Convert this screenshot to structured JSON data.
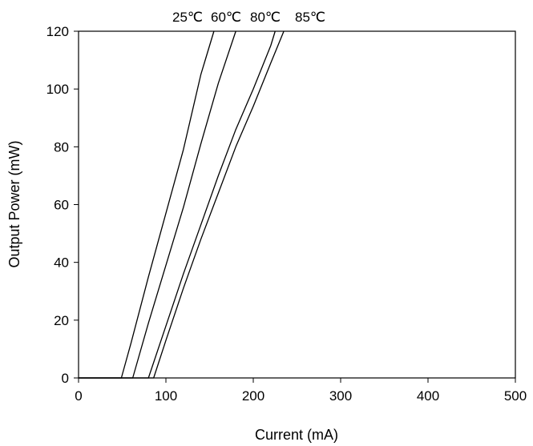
{
  "chart_data": {
    "type": "line",
    "title": "",
    "xlabel": "Current (mA)",
    "ylabel": "Output Power (mW)",
    "xlim": [
      0,
      500
    ],
    "ylim": [
      0,
      120
    ],
    "xticks": [
      0,
      100,
      200,
      300,
      400,
      500
    ],
    "yticks": [
      0,
      20,
      40,
      60,
      80,
      100,
      120
    ],
    "grid": false,
    "legend": "none",
    "line_color": "#000000",
    "top_labels": [
      "25℃",
      "60℃",
      "80℃",
      "85℃"
    ],
    "series": [
      {
        "name": "25℃",
        "x": [
          0,
          49,
          60,
          80,
          100,
          120,
          140,
          155
        ],
        "y": [
          0,
          0,
          12,
          35,
          57,
          79,
          105,
          120
        ]
      },
      {
        "name": "60℃",
        "x": [
          0,
          62,
          80,
          100,
          120,
          140,
          160,
          180
        ],
        "y": [
          0,
          0,
          19,
          39,
          59,
          81,
          102,
          120
        ]
      },
      {
        "name": "80℃",
        "x": [
          0,
          80,
          100,
          120,
          140,
          160,
          180,
          200,
          220,
          225
        ],
        "y": [
          0,
          0,
          18,
          36,
          53,
          70,
          86,
          100,
          115,
          120
        ]
      },
      {
        "name": "85℃",
        "x": [
          0,
          86,
          100,
          120,
          140,
          160,
          180,
          200,
          220,
          235
        ],
        "y": [
          0,
          0,
          13,
          31,
          48,
          64,
          80,
          94,
          109,
          120
        ]
      }
    ]
  }
}
